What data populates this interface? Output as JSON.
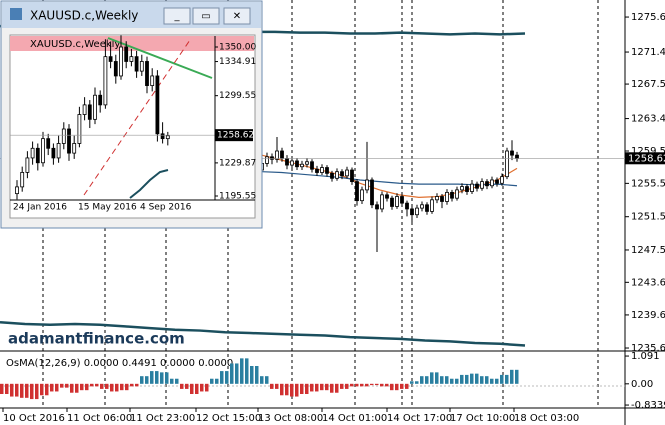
{
  "chart_data": {
    "type": "candlestick",
    "ylim": [
      1235.33,
      1277.75
    ],
    "yticks": [
      1275.69,
      1271.46,
      1267.59,
      1263.42,
      {
        "value": 1259.5,
        "label": "1259.50"
      },
      1255.59,
      1251.56,
      1247.54,
      1243.63,
      1239.69,
      1235.69
    ],
    "current_price": {
      "value": 1258.62,
      "label": "1258.62"
    },
    "x_labels": [
      "10 Oct 2016",
      "11 Oct 06:00",
      "11 Oct 23:00",
      "12 Oct 15:00",
      "13 Oct 08:00",
      "14 Oct 01:00",
      "14 Oct 17:00",
      "17 Oct 10:00",
      "18 Oct 03:00"
    ],
    "up_color": "#ffffff",
    "down_color": "#000000",
    "ohlc": [
      [
        1257.2,
        1258.6,
        1256.8,
        1258.0
      ],
      [
        1258.0,
        1259.3,
        1257.6,
        1258.8
      ],
      [
        1258.8,
        1259.2,
        1257.9,
        1258.5
      ],
      [
        1258.5,
        1261.2,
        1258.1,
        1259.5
      ],
      [
        1259.5,
        1259.9,
        1258.2,
        1258.6
      ],
      [
        1258.6,
        1259.0,
        1257.3,
        1257.8
      ],
      [
        1257.8,
        1258.7,
        1257.4,
        1258.3
      ],
      [
        1258.3,
        1258.6,
        1257.2,
        1257.6
      ],
      [
        1257.6,
        1258.3,
        1257.2,
        1257.9
      ],
      [
        1257.9,
        1258.6,
        1257.5,
        1258.2
      ],
      [
        1258.2,
        1258.5,
        1256.9,
        1257.3
      ],
      [
        1257.3,
        1257.7,
        1256.5,
        1256.9
      ],
      [
        1256.9,
        1257.9,
        1256.6,
        1257.5
      ],
      [
        1257.5,
        1257.8,
        1256.4,
        1256.8
      ],
      [
        1256.8,
        1257.1,
        1255.8,
        1256.2
      ],
      [
        1256.2,
        1257.4,
        1255.9,
        1257.0
      ],
      [
        1257.0,
        1257.3,
        1256.1,
        1256.5
      ],
      [
        1256.5,
        1257.6,
        1256.2,
        1257.2
      ],
      [
        1257.2,
        1257.5,
        1255.4,
        1255.8
      ],
      [
        1255.8,
        1256.1,
        1252.9,
        1253.5
      ],
      [
        1253.5,
        1255.2,
        1253.1,
        1254.8
      ],
      [
        1254.8,
        1260.6,
        1254.4,
        1256.0
      ],
      [
        1256.0,
        1256.3,
        1252.6,
        1253.0
      ],
      [
        1253.0,
        1253.4,
        1247.3,
        1252.5
      ],
      [
        1252.5,
        1254.6,
        1252.1,
        1254.2
      ],
      [
        1254.2,
        1254.5,
        1253.4,
        1253.8
      ],
      [
        1253.8,
        1254.1,
        1252.4,
        1252.8
      ],
      [
        1252.8,
        1254.4,
        1252.5,
        1254.0
      ],
      [
        1254.0,
        1254.3,
        1252.8,
        1253.2
      ],
      [
        1253.2,
        1253.5,
        1251.6,
        1252.5
      ],
      [
        1252.5,
        1252.8,
        1250.9,
        1251.8
      ],
      [
        1251.8,
        1253.0,
        1251.4,
        1252.6
      ],
      [
        1252.6,
        1253.4,
        1252.2,
        1253.0
      ],
      [
        1253.0,
        1253.3,
        1251.8,
        1252.2
      ],
      [
        1252.2,
        1254.0,
        1251.9,
        1253.6
      ],
      [
        1253.6,
        1254.4,
        1253.2,
        1254.0
      ],
      [
        1254.0,
        1254.3,
        1252.6,
        1253.4
      ],
      [
        1253.4,
        1254.9,
        1253.0,
        1254.5
      ],
      [
        1254.5,
        1254.8,
        1253.4,
        1253.8
      ],
      [
        1253.8,
        1255.2,
        1253.5,
        1254.8
      ],
      [
        1254.8,
        1255.6,
        1254.4,
        1255.2
      ],
      [
        1255.2,
        1255.5,
        1254.2,
        1254.6
      ],
      [
        1254.6,
        1256.0,
        1254.3,
        1255.5
      ],
      [
        1255.5,
        1255.8,
        1254.6,
        1255.0
      ],
      [
        1255.0,
        1256.2,
        1254.7,
        1255.8
      ],
      [
        1255.8,
        1256.1,
        1254.9,
        1255.3
      ],
      [
        1255.3,
        1256.4,
        1255.0,
        1256.0
      ],
      [
        1256.0,
        1256.3,
        1255.2,
        1255.6
      ],
      [
        1255.6,
        1256.8,
        1255.3,
        1256.4
      ],
      [
        1256.4,
        1259.9,
        1256.1,
        1259.5
      ],
      [
        1259.5,
        1260.8,
        1258.4,
        1259.0
      ],
      [
        1259.0,
        1259.4,
        1258.2,
        1258.6
      ]
    ],
    "series": [
      {
        "color": "#e07030",
        "values": [
          1259.0,
          1258.4,
          1257.8,
          1257.2,
          1256.6,
          1255.6,
          1254.8,
          1254.2,
          1253.9,
          1254.0,
          1254.5,
          1255.2,
          1256.0,
          1257.4
        ]
      },
      {
        "color": "#2a5a8a",
        "values": [
          1257.0,
          1256.9,
          1256.7,
          1256.5,
          1256.3,
          1256.0,
          1255.8,
          1255.6,
          1255.5,
          1255.5,
          1255.5,
          1255.4,
          1255.5,
          1255.3
        ]
      },
      {
        "color": "#1b4f5e",
        "values": [
          1274.6,
          1274.5,
          1274.4,
          1274.4,
          1274.3,
          1274.2,
          1274.2,
          1274.1,
          1274.0,
          1274.0,
          1273.9,
          1273.9,
          1273.8,
          1273.8,
          1273.7,
          1273.7,
          1273.8,
          1273.7,
          1273.6,
          1273.7,
          1273.6,
          1273.7
        ]
      },
      {
        "color": "#1b4f5e",
        "values": [
          1238.8,
          1238.6,
          1238.5,
          1238.6,
          1238.5,
          1238.3,
          1238.1,
          1237.9,
          1237.8,
          1237.6,
          1237.5,
          1237.4,
          1237.3,
          1237.2,
          1237.0,
          1236.9,
          1236.8,
          1236.6,
          1236.5,
          1236.3,
          1236.2,
          1236.0
        ]
      }
    ]
  },
  "indicator": {
    "label": "OsMA(12,26,9) 0.0000 0.4491 0.0000 0.0000",
    "ylim": [
      -0.95,
      1.25
    ],
    "yticks": [
      1.091,
      {
        "value": 0,
        "label": "0.00"
      },
      -0.8339
    ],
    "pos_color": "#2a7fa0",
    "neg_color": "#d03030",
    "values": [
      -0.4,
      -0.5,
      -0.55,
      -0.6,
      -0.45,
      -0.3,
      -0.15,
      -0.35,
      -0.25,
      -0.1,
      -0.2,
      -0.3,
      -0.25,
      -0.1,
      0.3,
      0.5,
      0.45,
      0.2,
      -0.2,
      -0.4,
      -0.3,
      0.2,
      0.5,
      0.8,
      1.0,
      0.7,
      0.3,
      -0.2,
      -0.45,
      -0.5,
      -0.4,
      -0.3,
      -0.25,
      -0.35,
      -0.2,
      -0.1,
      -0.1,
      -0.05,
      -0.1,
      -0.25,
      -0.2,
      0.1,
      0.3,
      0.45,
      0.3,
      0.2,
      0.35,
      0.4,
      0.3,
      0.2,
      0.35,
      0.55
    ]
  },
  "watermark": "adamantfinance.com",
  "inset": {
    "window_title": "XAUUSD.c,Weekly",
    "label": "XAUUSD.c,Weekly",
    "ylim": [
      1191.4,
      1359.33
    ],
    "yticks": [
      {
        "value": 1350,
        "label": "1350.00"
      },
      1334.91,
      1299.55,
      1229.87,
      1195.55
    ],
    "current_price": {
      "value": 1258.62,
      "label": "1258.62"
    },
    "x_labels": [
      "24 Jan 2016",
      "15 May 2016",
      "4 Sep 2016"
    ],
    "ohlc": [
      [
        1198,
        1212,
        1192,
        1205
      ],
      [
        1205,
        1226,
        1200,
        1220
      ],
      [
        1220,
        1242,
        1214,
        1235
      ],
      [
        1235,
        1252,
        1228,
        1245
      ],
      [
        1245,
        1250,
        1222,
        1230
      ],
      [
        1230,
        1262,
        1226,
        1255
      ],
      [
        1255,
        1260,
        1238,
        1245
      ],
      [
        1245,
        1250,
        1228,
        1235
      ],
      [
        1235,
        1258,
        1230,
        1250
      ],
      [
        1250,
        1272,
        1244,
        1265
      ],
      [
        1265,
        1270,
        1232,
        1240
      ],
      [
        1240,
        1258,
        1234,
        1250
      ],
      [
        1250,
        1288,
        1246,
        1280
      ],
      [
        1280,
        1298,
        1274,
        1290
      ],
      [
        1290,
        1295,
        1266,
        1275
      ],
      [
        1275,
        1308,
        1270,
        1300
      ],
      [
        1300,
        1305,
        1282,
        1290
      ],
      [
        1290,
        1358,
        1286,
        1340
      ],
      [
        1340,
        1355,
        1328,
        1335
      ],
      [
        1335,
        1342,
        1312,
        1320
      ],
      [
        1320,
        1362,
        1316,
        1350
      ],
      [
        1350,
        1356,
        1328,
        1335
      ],
      [
        1335,
        1348,
        1330,
        1340
      ],
      [
        1340,
        1346,
        1318,
        1325
      ],
      [
        1325,
        1342,
        1320,
        1335
      ],
      [
        1335,
        1340,
        1302,
        1310
      ],
      [
        1310,
        1328,
        1304,
        1320
      ],
      [
        1320,
        1326,
        1252,
        1260
      ],
      [
        1260,
        1272,
        1250,
        1255
      ],
      [
        1255,
        1262,
        1248,
        1258
      ]
    ]
  }
}
